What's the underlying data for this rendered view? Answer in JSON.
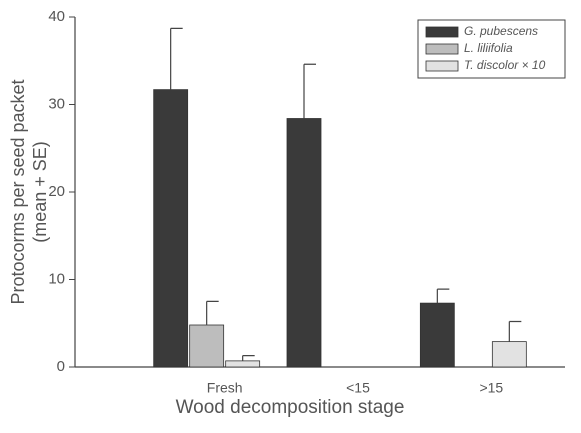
{
  "chart_data": {
    "type": "bar",
    "ylabel": "Protocorms per seed packet\n(mean + SE)",
    "xlabel": "Wood decomposition stage",
    "categories": [
      "Fresh",
      "<15",
      ">15"
    ],
    "series": [
      {
        "name": "G. pubescens",
        "color": "#3a3a3a",
        "values": [
          31.7,
          28.4,
          7.3
        ],
        "errors": [
          7.0,
          6.2,
          1.6
        ]
      },
      {
        "name": "L. liliifolia",
        "color": "#bdbdbd",
        "values": [
          4.8,
          null,
          null
        ],
        "errors": [
          2.7,
          null,
          null
        ]
      },
      {
        "name": "T. discolor × 10",
        "color": "#e2e2e2",
        "values": [
          0.7,
          null,
          2.9
        ],
        "errors": [
          0.6,
          null,
          2.3
        ]
      }
    ],
    "ylim": [
      0,
      40
    ],
    "yticks": [
      0,
      10,
      20,
      30,
      40
    ],
    "legend": "upper right"
  }
}
